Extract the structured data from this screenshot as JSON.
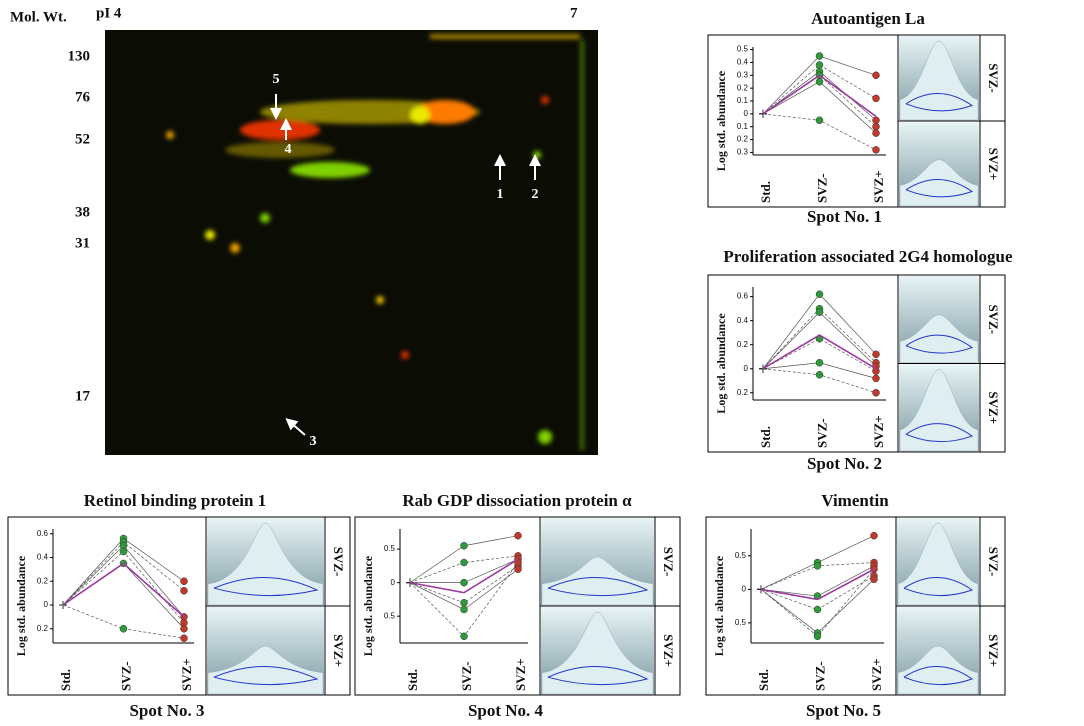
{
  "gel": {
    "mw_label": "Mol. Wt.",
    "pi_start": "pI 4",
    "pi_end": "7",
    "mw_markers": [
      130,
      76,
      52,
      38,
      31,
      17
    ],
    "spot_arrows": [
      "1",
      "2",
      "3",
      "4",
      "5"
    ]
  },
  "panels": [
    {
      "title": "Autoantigen La",
      "spot": "Spot No. 1",
      "ylabel": "Log std. abundance",
      "categories": [
        "Std.",
        "SVZ-",
        "SVZ+"
      ],
      "image_labels": [
        "SVZ-",
        "SVZ+"
      ],
      "ylim": [
        -0.32,
        0.52
      ],
      "yticks": [
        0.5,
        0.4,
        0.3,
        0.2,
        0.1,
        0,
        {
          "value": -0.1,
          "label": "0.1"
        },
        {
          "value": -0.2,
          "label": "0.2"
        },
        {
          "value": -0.3,
          "label": "0.3"
        }
      ],
      "samples": [
        [
          0,
          0.45,
          0.3
        ],
        [
          0,
          0.38,
          0.12
        ],
        [
          0,
          0.33,
          -0.05
        ],
        [
          0,
          0.3,
          -0.1
        ],
        [
          0,
          0.25,
          -0.15
        ],
        [
          0,
          -0.05,
          -0.28
        ]
      ],
      "mean": [
        0,
        0.3,
        -0.02
      ]
    },
    {
      "title": "Proliferation associated 2G4 homologue",
      "spot": "Spot No. 2",
      "ylabel": "Log std. abundance",
      "categories": [
        "Std.",
        "SVZ-",
        "SVZ+"
      ],
      "image_labels": [
        "SVZ-",
        "SVZ+"
      ],
      "ylim": [
        -0.26,
        0.68
      ],
      "yticks": [
        0.6,
        0.4,
        0.2,
        0,
        {
          "value": -0.2,
          "label": "0.2"
        }
      ],
      "samples": [
        [
          0,
          0.62,
          0.12
        ],
        [
          0,
          0.5,
          0.05
        ],
        [
          0,
          0.47,
          0.02
        ],
        [
          0,
          0.25,
          -0.02
        ],
        [
          0,
          0.05,
          -0.08
        ],
        [
          0,
          -0.05,
          -0.2
        ]
      ],
      "mean": [
        0,
        0.28,
        0
      ]
    },
    {
      "title": "Retinol binding protein 1",
      "spot": "Spot No. 3",
      "ylabel": "Log std. abundance",
      "categories": [
        "Std.",
        "SVZ-",
        "SVZ+"
      ],
      "image_labels": [
        "SVZ-",
        "SVZ+"
      ],
      "ylim": [
        -0.32,
        0.64
      ],
      "yticks": [
        0.6,
        0.4,
        0.2,
        0,
        {
          "value": -0.2,
          "label": "0.2"
        }
      ],
      "samples": [
        [
          0,
          0.56,
          0.2
        ],
        [
          0,
          0.53,
          0.12
        ],
        [
          0,
          0.5,
          -0.1
        ],
        [
          0,
          0.45,
          -0.15
        ],
        [
          0,
          0.35,
          -0.2
        ],
        [
          0,
          -0.2,
          -0.28
        ]
      ],
      "mean": [
        0,
        0.35,
        -0.1
      ]
    },
    {
      "title": "Rab GDP dissociation protein α",
      "spot": "Spot No. 4",
      "ylabel": "Log std. abundance",
      "categories": [
        "Std.",
        "SVZ-",
        "SVZ+"
      ],
      "image_labels": [
        "SVZ-",
        "SVZ+"
      ],
      "ylim": [
        -0.9,
        0.8
      ],
      "yticks": [
        0.5,
        0,
        {
          "value": -0.5,
          "label": "0.5"
        }
      ],
      "samples": [
        [
          0,
          0.55,
          0.7
        ],
        [
          0,
          0.3,
          0.4
        ],
        [
          0,
          0,
          0.35
        ],
        [
          0,
          -0.3,
          0.25
        ],
        [
          0,
          -0.4,
          0.2
        ],
        [
          0,
          -0.8,
          0.3
        ]
      ],
      "mean": [
        0,
        -0.15,
        0.35
      ]
    },
    {
      "title": "Vimentin",
      "spot": "Spot No. 5",
      "ylabel": "Log std. abundance",
      "categories": [
        "Std.",
        "SVZ-",
        "SVZ+"
      ],
      "image_labels": [
        "SVZ-",
        "SVZ+"
      ],
      "ylim": [
        -0.8,
        0.9
      ],
      "yticks": [
        0.5,
        0,
        {
          "value": -0.5,
          "label": "0.5"
        }
      ],
      "samples": [
        [
          0,
          0.4,
          0.8
        ],
        [
          0,
          0.35,
          0.4
        ],
        [
          0,
          -0.1,
          0.35
        ],
        [
          0,
          -0.3,
          0.2
        ],
        [
          0,
          -0.65,
          0.15
        ],
        [
          0,
          -0.7,
          0.3
        ]
      ],
      "mean": [
        0,
        -0.15,
        0.3
      ]
    }
  ]
}
